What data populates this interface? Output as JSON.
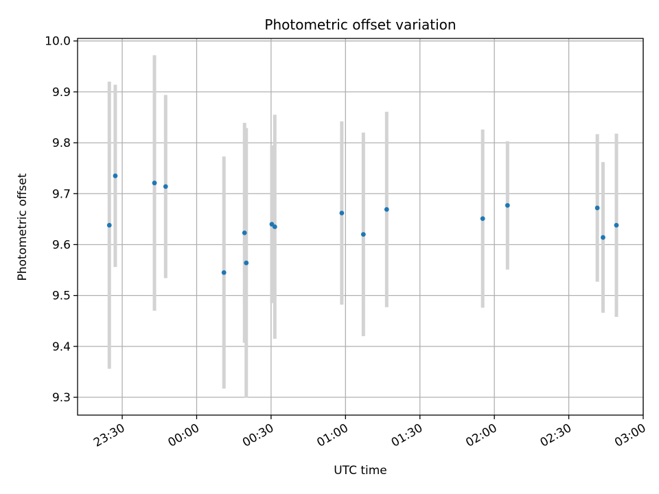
{
  "chart_data": {
    "type": "scatter",
    "title": "Photometric offset variation",
    "xlabel": "UTC time",
    "ylabel": "Photometric offset",
    "x_axis_kind": "time",
    "x_ticks": [
      "23:30",
      "00:00",
      "00:30",
      "01:00",
      "01:30",
      "02:00",
      "02:30",
      "03:00"
    ],
    "x_tick_minutes": [
      -30,
      0,
      30,
      60,
      90,
      120,
      150,
      180
    ],
    "xlim_minutes": [
      -48,
      180
    ],
    "y_ticks": [
      "9.3",
      "9.4",
      "9.5",
      "9.6",
      "9.7",
      "9.8",
      "9.9",
      "10.0"
    ],
    "y_tick_values": [
      9.3,
      9.4,
      9.5,
      9.6,
      9.7,
      9.8,
      9.9,
      10.0
    ],
    "ylim": [
      9.265,
      10.005
    ],
    "grid": true,
    "marker_color": "#1f77b4",
    "errorbar_color": "#d3d3d3",
    "points": [
      {
        "x": "23:25",
        "t": -35.2,
        "y": 9.638,
        "err": 0.282
      },
      {
        "x": "23:27",
        "t": -32.8,
        "y": 9.735,
        "err": 0.179
      },
      {
        "x": "23:45",
        "t": -17.0,
        "y": 9.721,
        "err": 0.251
      },
      {
        "x": "23:49",
        "t": -12.5,
        "y": 9.714,
        "err": 0.18
      },
      {
        "x": "00:11",
        "t": 11.0,
        "y": 9.545,
        "err": 0.228
      },
      {
        "x": "00:19",
        "t": 19.3,
        "y": 9.623,
        "err": 0.216
      },
      {
        "x": "00:20",
        "t": 20.0,
        "y": 9.564,
        "err": 0.265
      },
      {
        "x": "00:30",
        "t": 30.3,
        "y": 9.64,
        "err": 0.155
      },
      {
        "x": "00:31",
        "t": 31.5,
        "y": 9.635,
        "err": 0.22
      },
      {
        "x": "00:58",
        "t": 58.5,
        "y": 9.662,
        "err": 0.18
      },
      {
        "x": "01:07",
        "t": 67.2,
        "y": 9.62,
        "err": 0.2
      },
      {
        "x": "01:16",
        "t": 76.6,
        "y": 9.669,
        "err": 0.192
      },
      {
        "x": "01:55",
        "t": 115.3,
        "y": 9.651,
        "err": 0.175
      },
      {
        "x": "02:05",
        "t": 125.3,
        "y": 9.677,
        "err": 0.126
      },
      {
        "x": "02:41",
        "t": 161.5,
        "y": 9.672,
        "err": 0.145
      },
      {
        "x": "02:43",
        "t": 163.8,
        "y": 9.614,
        "err": 0.148
      },
      {
        "x": "02:48",
        "t": 169.2,
        "y": 9.638,
        "err": 0.18
      }
    ]
  }
}
